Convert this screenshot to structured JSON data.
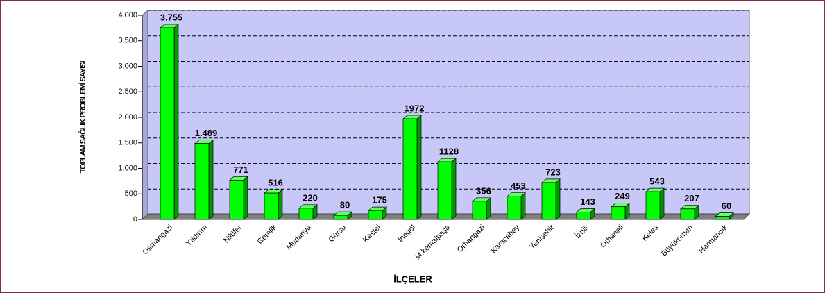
{
  "chart_data": {
    "type": "bar3d",
    "y_label": "TOPLAM SAĞLIK PROBLEMİ SAYISI",
    "x_label": "İLÇELER",
    "categories": [
      "Osmangazi",
      "Yıldırım",
      "Nilüfer",
      "Gemlik",
      "Mudanya",
      "Gürsu",
      "Kestel",
      "İnegöl",
      "M.kemalpaşa",
      "Orhangazi",
      "Karacabey",
      "Yenişehir",
      "İznik",
      "Orhaneli",
      "Keles",
      "Büyükorhan",
      "Harmancık"
    ],
    "values": [
      3755,
      1489,
      771,
      516,
      220,
      80,
      175,
      1972,
      1128,
      356,
      453,
      723,
      143,
      249,
      543,
      207,
      60
    ],
    "value_labels": [
      "3.755",
      "1.489",
      "771",
      "516",
      "220",
      "80",
      "175",
      "1972",
      "1128",
      "356",
      "453",
      "723",
      "143",
      "249",
      "543",
      "207",
      "60"
    ],
    "color": "#00ff00",
    "ylim": [
      0,
      4000
    ],
    "yticks": [
      0,
      500,
      {
        "value": 1000,
        "label": "1.000"
      },
      {
        "value": 1500,
        "label": "1.500"
      },
      {
        "value": 2000,
        "label": "2.000"
      },
      {
        "value": 2500,
        "label": "2.500"
      },
      {
        "value": 3000,
        "label": "3.000"
      },
      {
        "value": 3500,
        "label": "3.500"
      },
      {
        "value": 4000,
        "label": "4.000"
      }
    ],
    "grid": true
  }
}
